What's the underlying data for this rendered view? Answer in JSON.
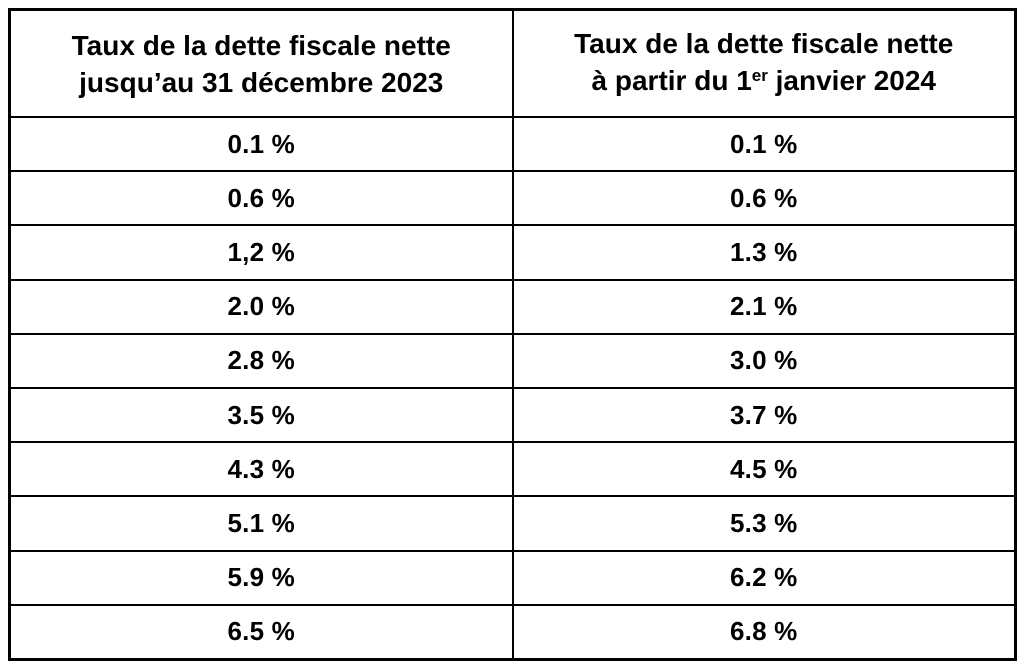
{
  "page": {
    "background": "#ffffff",
    "border_color": "#000000",
    "text_color": "#000000"
  },
  "header": {
    "col1_line1": "Taux de la dette fiscale nette",
    "col1_line2": "jusqu’au 31 décembre 2023",
    "col2_line1": "Taux de la dette fiscale nette",
    "col2_line2_prefix": "à partir du 1",
    "col2_line2_sup": "er",
    "col2_line2_suffix": " janvier 2024"
  },
  "chart_data": {
    "type": "table",
    "columns": [
      "Taux de la dette fiscale nette jusqu’au 31 décembre 2023",
      "Taux de la dette fiscale nette à partir du 1er janvier 2024"
    ],
    "rows": [
      [
        "0.1 %",
        "0.1 %"
      ],
      [
        "0.6 %",
        "0.6 %"
      ],
      [
        "1,2 %",
        "1.3 %"
      ],
      [
        "2.0 %",
        "2.1 %"
      ],
      [
        "2.8 %",
        "3.0 %"
      ],
      [
        "3.5 %",
        "3.7 %"
      ],
      [
        "4.3 %",
        "4.5 %"
      ],
      [
        "5.1 %",
        "5.3 %"
      ],
      [
        "5.9 %",
        "6.2 %"
      ],
      [
        "6.5 %",
        "6.8 %"
      ]
    ]
  }
}
